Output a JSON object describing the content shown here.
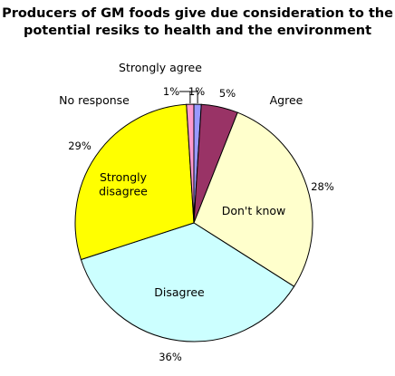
{
  "chart_data": {
    "type": "pie",
    "title_lines": [
      "Producers of GM foods give due consideration to the",
      "potential resiks to health and the environment"
    ],
    "slices": [
      {
        "label": "Strongly agree",
        "value": 1,
        "value_label": "1%",
        "color": "#9999ff"
      },
      {
        "label": "Agree",
        "value": 5,
        "value_label": "5%",
        "color": "#993366"
      },
      {
        "label": "Don't know",
        "value": 28,
        "value_label": "28%",
        "color": "#ffffcc"
      },
      {
        "label": "Disagree",
        "value": 36,
        "value_label": "36%",
        "color": "#ccffff"
      },
      {
        "label": "Strongly disagree",
        "label_lines": [
          "Strongly",
          "disagree"
        ],
        "value": 29,
        "value_label": "29%",
        "color": "#ffff00"
      },
      {
        "label": "No response",
        "value": 1,
        "value_label": "1%",
        "color": "#ff99cc"
      }
    ],
    "slice_order": "clockwise from top",
    "legend": "none (labels on or beside slices)"
  }
}
